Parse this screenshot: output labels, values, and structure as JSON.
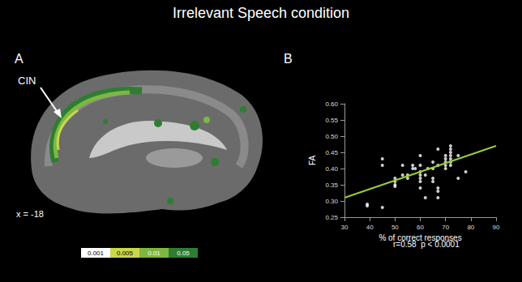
{
  "title": "Irrelevant Speech condition",
  "panel_a": {
    "label": "A",
    "annotation": "CIN",
    "slice": "x = -18",
    "colorbar": {
      "ticks": [
        0.001,
        0.005,
        0.01,
        0.05
      ],
      "colors": [
        "#ffffff",
        "#c8d84a",
        "#7cb842",
        "#2e7d32"
      ]
    }
  },
  "chart_data": {
    "type": "scatter",
    "label": "B",
    "xlabel": "% of correct responses",
    "ylabel": "FA",
    "annotation": "r=0.58  p < 0.0001",
    "color": "#ffffff",
    "marker": "circle",
    "x": [
      39,
      39,
      45,
      45,
      45,
      50,
      50,
      50,
      50,
      53,
      53,
      55,
      55,
      57,
      57,
      58,
      60,
      60,
      60,
      60,
      60,
      60,
      60,
      62,
      62,
      63,
      65,
      65,
      65,
      65,
      67,
      67,
      67,
      67,
      67,
      70,
      70,
      70,
      70,
      70,
      72,
      72,
      72,
      72,
      72,
      72,
      72,
      75,
      75,
      78
    ],
    "values": [
      0.29,
      0.285,
      0.43,
      0.41,
      0.28,
      0.37,
      0.36,
      0.35,
      0.345,
      0.41,
      0.38,
      0.37,
      0.38,
      0.41,
      0.4,
      0.4,
      0.44,
      0.41,
      0.39,
      0.38,
      0.37,
      0.36,
      0.34,
      0.31,
      0.38,
      0.4,
      0.4,
      0.37,
      0.36,
      0.42,
      0.46,
      0.41,
      0.34,
      0.33,
      0.31,
      0.44,
      0.43,
      0.42,
      0.41,
      0.4,
      0.47,
      0.46,
      0.45,
      0.44,
      0.43,
      0.42,
      0.41,
      0.44,
      0.37,
      0.39
    ],
    "fit": {
      "x": [
        30,
        90
      ],
      "values": [
        0.31,
        0.47
      ],
      "color": "#9acd32",
      "line_style": "solid"
    },
    "xlim": [
      30,
      90
    ],
    "xticks": [
      30,
      40,
      50,
      60,
      70,
      80,
      90
    ],
    "ylim": [
      0.25,
      0.6
    ],
    "yticks": [
      0.25,
      {
        "value": 0.3,
        "label": "0.30"
      },
      0.35,
      {
        "value": 0.4,
        "label": "0.40"
      },
      0.45,
      {
        "value": 0.5,
        "label": "0.50"
      },
      0.55,
      {
        "value": 0.6,
        "label": "0.60"
      }
    ],
    "grid": false
  }
}
